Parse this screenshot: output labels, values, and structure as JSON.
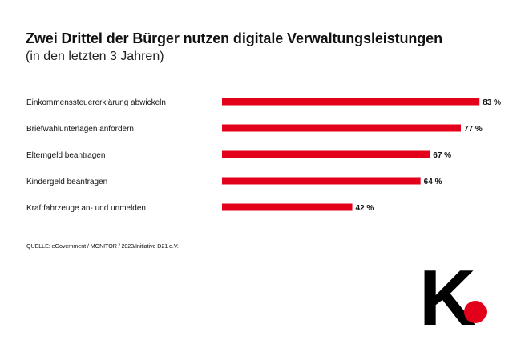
{
  "chart_data": {
    "type": "bar",
    "orientation": "horizontal",
    "title": "Zwei Drittel der Bürger nutzen digitale Verwaltungsleistungen",
    "subtitle": "(in den letzten 3 Jahren)",
    "categories": [
      "Einkommenssteuererklärung abwickeln",
      "Briefwahlunterlagen anfordern",
      "Elterngeld beantragen",
      "Kindergeld beantragen",
      "Kraftfahrzeuge an- und unmelden"
    ],
    "values": [
      83,
      77,
      67,
      64,
      42
    ],
    "value_labels": [
      "83 %",
      "77 %",
      "67 %",
      "64 %",
      "42 %"
    ],
    "unit": "%",
    "xlim": [
      0,
      100
    ],
    "grid": false,
    "legend": "none",
    "bar_color": "#e2001a",
    "source": "QUELLE: eGovernment / MONITOR / 2023/Initiative D21 e.V."
  },
  "brand": {
    "logo_letter": "K",
    "accent": "#e2001a"
  }
}
